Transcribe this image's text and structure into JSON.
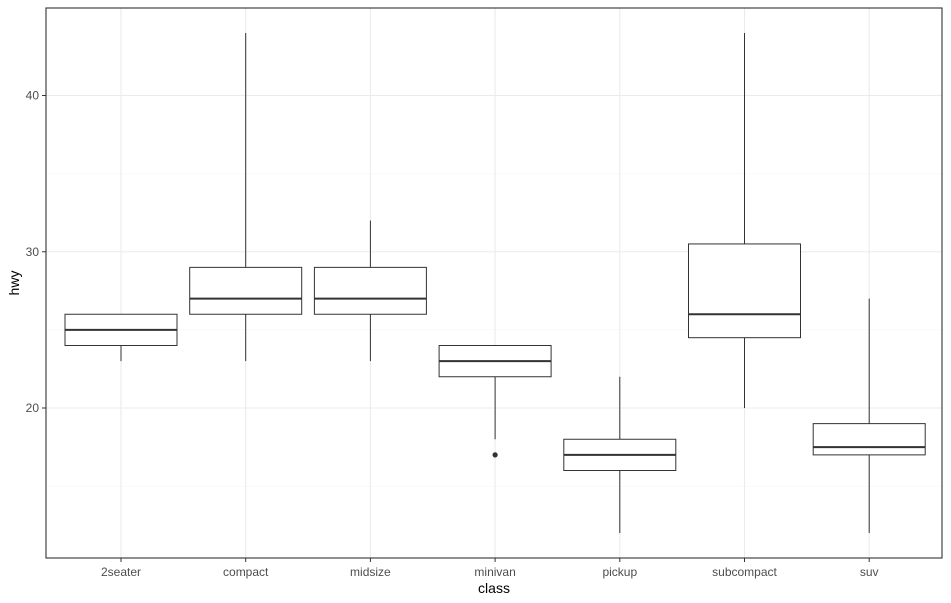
{
  "chart_data": {
    "type": "boxplot",
    "title": "",
    "xlabel": "class",
    "ylabel": "hwy",
    "ylim": [
      10.4,
      45.6
    ],
    "y_ticks": [
      20,
      30,
      40
    ],
    "y_minor_ticks": [
      15,
      25,
      35
    ],
    "grid": true,
    "legend": "none",
    "categories": [
      "2seater",
      "compact",
      "midsize",
      "minivan",
      "pickup",
      "subcompact",
      "suv"
    ],
    "boxes": [
      {
        "name": "2seater",
        "whisker_low": 23,
        "q1": 24,
        "median": 25,
        "q3": 26,
        "whisker_high": 26,
        "outliers": []
      },
      {
        "name": "compact",
        "whisker_low": 23,
        "q1": 26,
        "median": 27,
        "q3": 29,
        "whisker_high": 44,
        "outliers": []
      },
      {
        "name": "midsize",
        "whisker_low": 23,
        "q1": 26,
        "median": 27,
        "q3": 29,
        "whisker_high": 32,
        "outliers": []
      },
      {
        "name": "minivan",
        "whisker_low": 18,
        "q1": 22,
        "median": 23,
        "q3": 24,
        "whisker_high": 24,
        "outliers": [
          17
        ]
      },
      {
        "name": "pickup",
        "whisker_low": 12,
        "q1": 16,
        "median": 17,
        "q3": 18,
        "whisker_high": 22,
        "outliers": []
      },
      {
        "name": "subcompact",
        "whisker_low": 20,
        "q1": 24.5,
        "median": 26,
        "q3": 30.5,
        "whisker_high": 44,
        "outliers": []
      },
      {
        "name": "suv",
        "whisker_low": 12,
        "q1": 17,
        "median": 17.5,
        "q3": 19,
        "whisker_high": 27,
        "outliers": []
      }
    ],
    "colors": {
      "panel_border": "#333333",
      "grid_major": "#ebebeb",
      "grid_minor": "#f5f5f5",
      "box_stroke": "#333333",
      "box_fill": "#ffffff",
      "tick_text": "#4d4d4d",
      "axis_title": "#000000"
    }
  }
}
